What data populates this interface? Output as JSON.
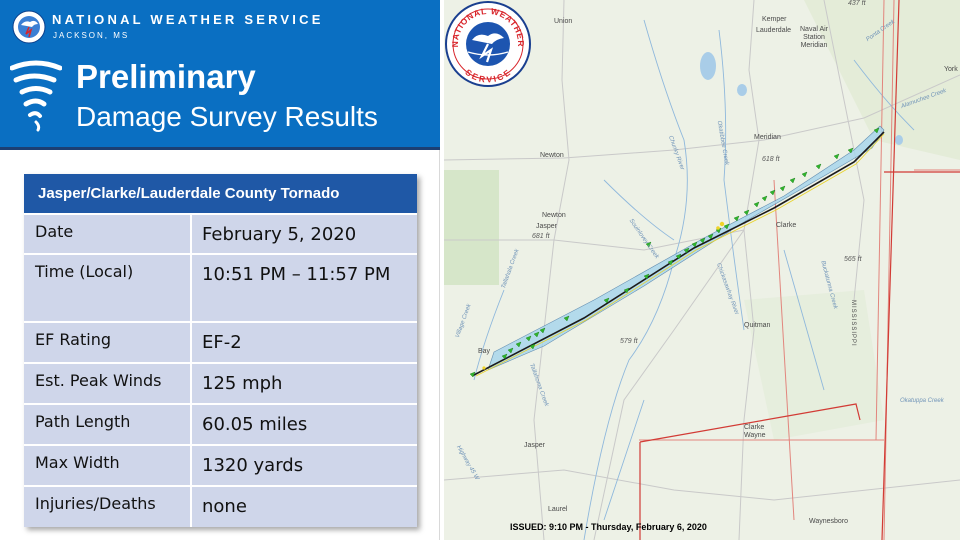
{
  "header": {
    "org_name": "NATIONAL WEATHER SERVICE",
    "office": "JACKSON, MS",
    "title_line1": "Preliminary",
    "title_line2": "Damage Survey Results",
    "logo_icon": "nws-logo-icon",
    "tornado_icon": "tornado-icon",
    "colors": {
      "header_bg": "#0a6fc2",
      "table_header": "#1f58a6",
      "table_cell": "#cfd6ea"
    }
  },
  "table": {
    "title": "Jasper/Clarke/Lauderdale  County Tornado",
    "rows": [
      {
        "label": "Date",
        "value": "February 5, 2020"
      },
      {
        "label": "Time (Local)",
        "value": "10:51 PM – 11:57 PM"
      },
      {
        "label": "EF Rating",
        "value": "EF-2"
      },
      {
        "label": "Est. Peak Winds",
        "value": "125 mph"
      },
      {
        "label": "Path Length",
        "value": "60.05 miles"
      },
      {
        "label": "Max Width",
        "value": "1320 yards"
      },
      {
        "label": "Injuries/Deaths",
        "value": "none"
      }
    ]
  },
  "map": {
    "places": {
      "union": "Union",
      "kemper": "Kemper",
      "lauderdale": "Lauderdale",
      "naval_air_station": "Naval Air\nStation\nMeridian",
      "york": "York",
      "newton": "Newton",
      "newton_co": "Newton",
      "jasper_co": "Jasper",
      "meridian": "Meridian",
      "clarke": "Clarke",
      "quitman": "Quitman",
      "bay_springs": "Bay",
      "clarke_wayne": "Clarke\nWayne",
      "jasper": "Jasper",
      "laurel": "Laurel",
      "waynesboro": "Waynesboro",
      "mississippi": "MISSISSIPPI"
    },
    "elevations": {
      "e437": "437 ft",
      "e618": "618 ft",
      "e681": "681 ft",
      "e565": "565 ft",
      "e579": "579 ft"
    },
    "rivers": {
      "ponta": "Ponta Creek",
      "chunky": "Chunky River",
      "okatibbee": "Okatibbee Creek",
      "chickasawhay": "Chickasawhay River",
      "souinlovey": "Souinlovey Creek",
      "tallahoma": "Tallahoma Creek",
      "okatuppa": "Okatuppa Creek",
      "alamuchee": "Alamuchee Creek",
      "buckatunna": "Buckatunna Creek",
      "highway": "Highway 45 W",
      "tallahala": "Tallahala Creek",
      "village": "Village Creek"
    },
    "track": {
      "start": "near Bay Springs, Jasper County",
      "end": "northeast of Meridian, Lauderdale County",
      "track_color": "#1b1b1b",
      "width_polygon_color": "#a9d6ec",
      "damage_point_color": "#2fb52c"
    },
    "issued": "ISSUED: 9:10 PM - Thursday, February 6, 2020",
    "seal": {
      "icon": "nws-seal-icon",
      "text_top": "NATIONAL WEATHER",
      "text_bottom": "SERVICE"
    }
  }
}
